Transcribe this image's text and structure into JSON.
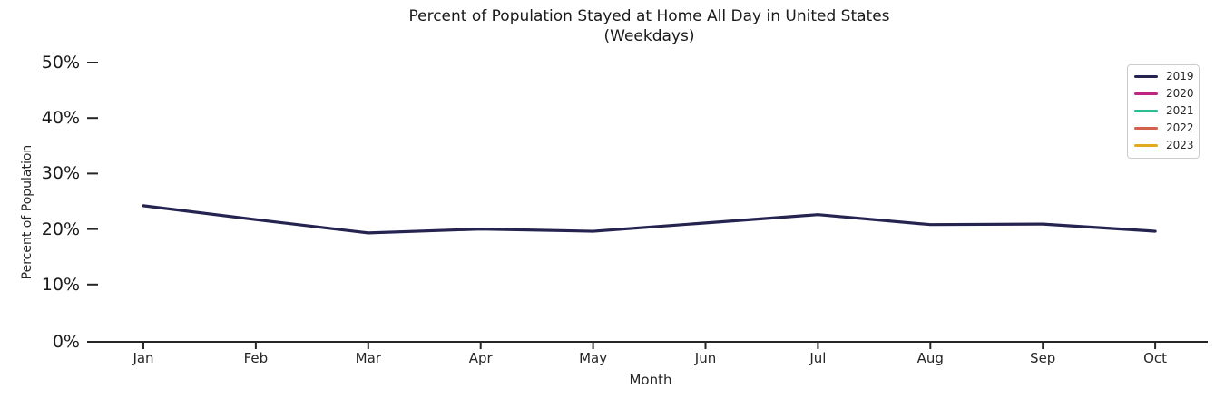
{
  "title": {
    "line1": "Percent of Population Stayed at Home All Day in United States",
    "line2": "(Weekdays)"
  },
  "chart_data": {
    "type": "line",
    "title": "Percent of Population Stayed at Home All Day in United States (Weekdays)",
    "xlabel": "Month",
    "ylabel": "Percent of Population",
    "categories": [
      "Jan",
      "Feb",
      "Mar",
      "Apr",
      "May",
      "Jun",
      "Jul",
      "Aug",
      "Sep",
      "Oct"
    ],
    "y_ticks": {
      "values": [
        0,
        10,
        20,
        30,
        40,
        50
      ],
      "labels": [
        "0%",
        "10%",
        "20%",
        "30%",
        "40%",
        "50%"
      ]
    },
    "ylim": [
      0,
      52
    ],
    "grid": false,
    "legend_position": "upper right",
    "series": [
      {
        "name": "2019",
        "color": "#252350",
        "values": [
          24.2,
          21.7,
          19.3,
          20.0,
          19.6,
          21.1,
          22.6,
          20.8,
          20.9,
          19.6
        ]
      },
      {
        "name": "2020",
        "color": "#c02485",
        "values": []
      },
      {
        "name": "2021",
        "color": "#2bbd92",
        "values": []
      },
      {
        "name": "2022",
        "color": "#d4604e",
        "values": []
      },
      {
        "name": "2023",
        "color": "#e2aa1d",
        "values": []
      }
    ]
  },
  "style": {
    "axis_color": "#262626",
    "tick_color": "#262626"
  }
}
